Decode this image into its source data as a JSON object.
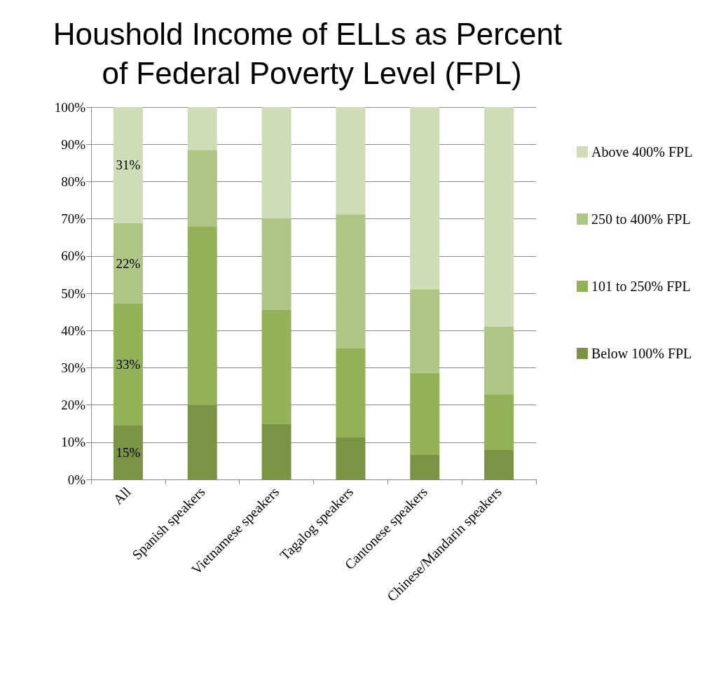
{
  "chart_data": {
    "type": "bar",
    "title": "Houshold Income of ELLs as Percent of Federal Poverty Level (FPL)",
    "stacked": true,
    "categories": [
      "All",
      "Spanish speakers",
      "Vietnamese speakers",
      "Tagalog speakers",
      "Cantonese speakers",
      "Chinese/Mandarin speakers"
    ],
    "series": [
      {
        "name": "Below 100% FPL",
        "color": "#7a9446",
        "values": [
          14.6,
          20,
          15,
          11.3,
          6.6,
          7.9
        ],
        "value_labels": [
          "15%",
          null,
          null,
          null,
          null,
          null
        ]
      },
      {
        "name": "101 to 250% FPL",
        "color": "#93b156",
        "values": [
          32.6,
          48,
          30.5,
          24,
          22,
          15
        ],
        "value_labels": [
          "33%",
          null,
          null,
          null,
          null,
          null
        ]
      },
      {
        "name": "250 to 400% FPL",
        "color": "#adc686",
        "values": [
          21.6,
          20.5,
          24.5,
          35.9,
          22.5,
          18.1
        ],
        "value_labels": [
          "22%",
          null,
          null,
          null,
          null,
          null
        ]
      },
      {
        "name": "Above 400% FPL",
        "color": "#cedcb8",
        "values": [
          31.2,
          11.5,
          30,
          28.8,
          48.9,
          59
        ],
        "value_labels": [
          "31%",
          null,
          null,
          null,
          null,
          null
        ]
      }
    ],
    "ylim": [
      0,
      100
    ],
    "yticks": [
      {
        "value": 0,
        "label": "0%"
      },
      {
        "value": 10,
        "label": "10%"
      },
      {
        "value": 20,
        "label": "20%"
      },
      {
        "value": 30,
        "label": "30%"
      },
      {
        "value": 40,
        "label": "40%"
      },
      {
        "value": 50,
        "label": "50%"
      },
      {
        "value": 60,
        "label": "60%"
      },
      {
        "value": 70,
        "label": "70%"
      },
      {
        "value": 80,
        "label": "80%"
      },
      {
        "value": 90,
        "label": "90%"
      },
      {
        "value": 100,
        "label": "100%"
      }
    ],
    "grid": "y",
    "legend": "right"
  }
}
